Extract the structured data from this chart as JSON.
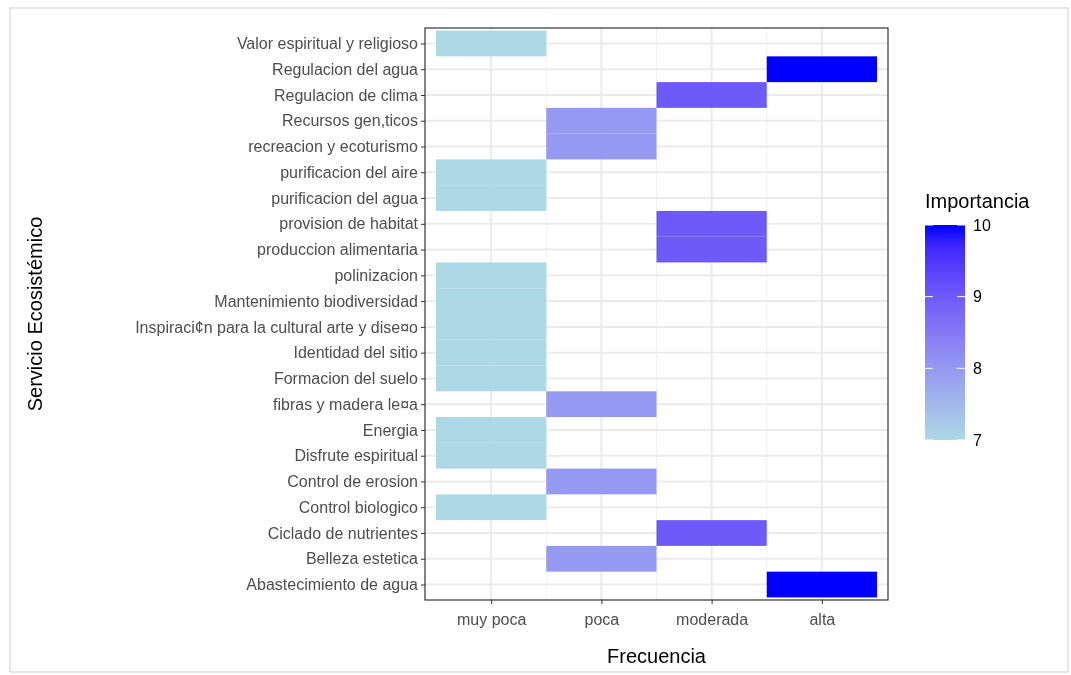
{
  "chart_data": {
    "type": "heatmap",
    "xlabel": "Frecuencia",
    "ylabel": "Servicio Ecosistémico",
    "legend_title": "Importancia",
    "categories": [
      "muy poca",
      "poca",
      "moderada",
      "alta"
    ],
    "y_categories": [
      "Valor espiritual y religioso",
      "Regulacion del agua",
      "Regulacion de clima",
      "Recursos gen,ticos",
      "recreacion y ecoturismo",
      "purificacion del aire",
      "purificacion del agua",
      "provision de habitat",
      "produccion alimentaria",
      "polinizacion",
      "Mantenimiento biodiversidad",
      "Inspiraci¢n para la cultural arte y dise¤o",
      "Identidad del sitio",
      "Formacion del suelo",
      "fibras y madera le¤a",
      "Energia",
      "Disfrute espiritual",
      "Control de erosion",
      "Control biologico",
      "Ciclado de nutrientes",
      "Belleza estetica",
      "Abastecimiento de agua"
    ],
    "cells": [
      [
        7,
        null,
        null,
        null
      ],
      [
        null,
        null,
        null,
        10
      ],
      [
        null,
        null,
        9,
        null
      ],
      [
        null,
        8,
        null,
        null
      ],
      [
        null,
        8,
        null,
        null
      ],
      [
        7,
        null,
        null,
        null
      ],
      [
        7,
        null,
        null,
        null
      ],
      [
        null,
        null,
        9,
        null
      ],
      [
        null,
        null,
        9,
        null
      ],
      [
        7,
        null,
        null,
        null
      ],
      [
        7,
        null,
        null,
        null
      ],
      [
        7,
        null,
        null,
        null
      ],
      [
        7,
        null,
        null,
        null
      ],
      [
        7,
        null,
        null,
        null
      ],
      [
        null,
        8,
        null,
        null
      ],
      [
        7,
        null,
        null,
        null
      ],
      [
        7,
        null,
        null,
        null
      ],
      [
        null,
        8,
        null,
        null
      ],
      [
        7,
        null,
        null,
        null
      ],
      [
        null,
        null,
        9,
        null
      ],
      [
        null,
        8,
        null,
        null
      ],
      [
        null,
        null,
        null,
        10
      ]
    ],
    "colors": [
      "#add8e6",
      "#0000ff"
    ],
    "clim": [
      7,
      10
    ],
    "cticks": [
      7,
      8,
      9,
      10
    ],
    "grid": true
  }
}
